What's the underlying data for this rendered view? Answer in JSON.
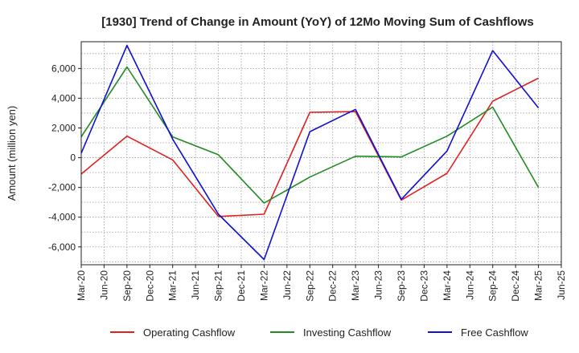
{
  "chart_data": {
    "type": "line",
    "title": "[1930]  Trend of Change in Amount (YoY) of 12Mo Moving Sum of Cashflows",
    "xlabel": "",
    "ylabel": "Amount (million yen)",
    "ylim": [
      -7200,
      7800
    ],
    "yticks": [
      -6000,
      -4000,
      -2000,
      0,
      2000,
      4000,
      6000
    ],
    "ytick_labels": [
      "-6,000",
      "-4,000",
      "-2,000",
      "0",
      "2,000",
      "4,000",
      "6,000"
    ],
    "categories": [
      "Mar-20",
      "Jun-20",
      "Sep-20",
      "Dec-20",
      "Mar-21",
      "Jun-21",
      "Sep-21",
      "Dec-21",
      "Mar-22",
      "Jun-22",
      "Sep-22",
      "Dec-22",
      "Mar-23",
      "Jun-23",
      "Sep-23",
      "Dec-23",
      "Mar-24",
      "Jun-24",
      "Sep-24",
      "Dec-24",
      "Mar-25",
      "Jun-25"
    ],
    "grid": true,
    "legend_position": "bottom",
    "series": [
      {
        "name": "Operating Cashflow",
        "color": "#e02020",
        "points": [
          [
            0,
            -1100
          ],
          [
            2,
            1450
          ],
          [
            4,
            -150
          ],
          [
            6,
            -3950
          ],
          [
            8,
            -3800
          ],
          [
            10,
            3050
          ],
          [
            12,
            3100
          ],
          [
            14,
            -2850
          ],
          [
            16,
            -1050
          ],
          [
            18,
            3800
          ],
          [
            20,
            5350
          ]
        ]
      },
      {
        "name": "Investing Cashflow",
        "color": "#228b22",
        "points": [
          [
            0,
            1400
          ],
          [
            2,
            6100
          ],
          [
            4,
            1400
          ],
          [
            6,
            200
          ],
          [
            8,
            -3050
          ],
          [
            10,
            -1300
          ],
          [
            12,
            100
          ],
          [
            14,
            50
          ],
          [
            16,
            1450
          ],
          [
            18,
            3400
          ],
          [
            20,
            -2000
          ]
        ]
      },
      {
        "name": "Free Cashflow",
        "color": "#1010d0",
        "points": [
          [
            0,
            300
          ],
          [
            2,
            7550
          ],
          [
            4,
            1250
          ],
          [
            6,
            -3800
          ],
          [
            8,
            -6850
          ],
          [
            10,
            1750
          ],
          [
            12,
            3250
          ],
          [
            14,
            -2800
          ],
          [
            16,
            450
          ],
          [
            18,
            7200
          ],
          [
            20,
            3350
          ]
        ]
      }
    ]
  }
}
